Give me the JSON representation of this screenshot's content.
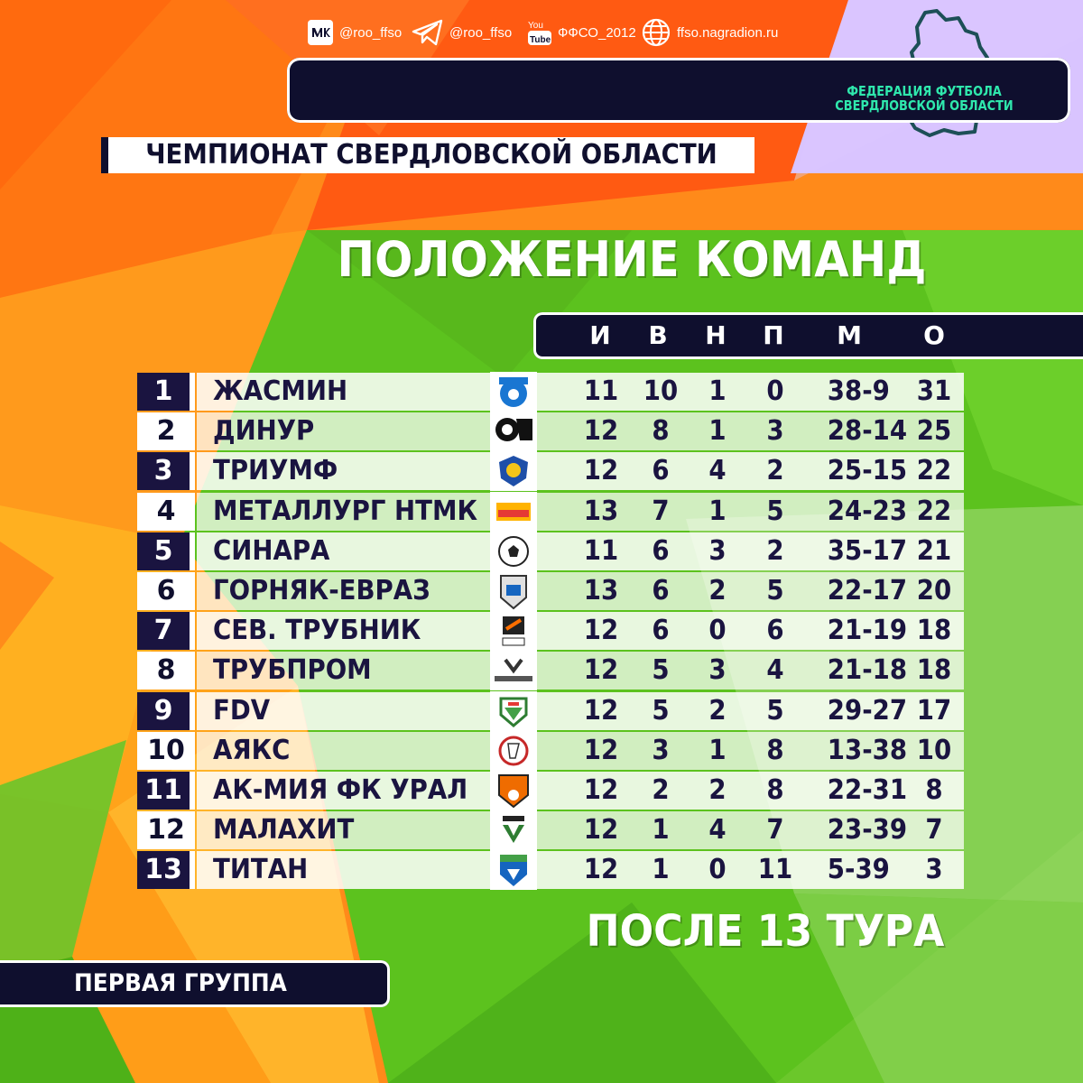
{
  "social": {
    "vk": "@roo_ffso",
    "telegram": "@roo_ffso",
    "youtube": "ФФСО_2012",
    "site": "ffso.nagradion.ru"
  },
  "federation": {
    "line1": "ФЕДЕРАЦИЯ ФУТБОЛА",
    "line2": "СВЕРДЛОВСКОЙ ОБЛАСТИ"
  },
  "championship": "ЧЕМПИОНАТ СВЕРДЛОВСКОЙ ОБЛАСТИ",
  "title": "ПОЛОЖЕНИЕ КОМАНД",
  "columns": [
    "И",
    "В",
    "Н",
    "П",
    "М",
    "О"
  ],
  "table": [
    {
      "pos": "1",
      "team": "ЖАСМИН",
      "logo": "zhasmin-logo",
      "p": "11",
      "w": "10",
      "d": "1",
      "l": "0",
      "goals": "38-9",
      "pts": "31"
    },
    {
      "pos": "2",
      "team": "ДИНУР",
      "logo": "dinur-logo",
      "p": "12",
      "w": "8",
      "d": "1",
      "l": "3",
      "goals": "28-14",
      "pts": "25"
    },
    {
      "pos": "3",
      "team": "ТРИУМФ",
      "logo": "triumf-logo",
      "p": "12",
      "w": "6",
      "d": "4",
      "l": "2",
      "goals": "25-15",
      "pts": "22"
    },
    {
      "pos": "4",
      "team": "МЕТАЛЛУРГ НТМК",
      "logo": "ntmk-logo",
      "p": "13",
      "w": "7",
      "d": "1",
      "l": "5",
      "goals": "24-23",
      "pts": "22"
    },
    {
      "pos": "5",
      "team": "СИНАРА",
      "logo": "sinara-logo",
      "p": "11",
      "w": "6",
      "d": "3",
      "l": "2",
      "goals": "35-17",
      "pts": "21"
    },
    {
      "pos": "6",
      "team": "ГОРНЯК-ЕВРАЗ",
      "logo": "gornyak-logo",
      "p": "13",
      "w": "6",
      "d": "2",
      "l": "5",
      "goals": "22-17",
      "pts": "20"
    },
    {
      "pos": "7",
      "team": "СЕВ. ТРУБНИК",
      "logo": "trubnik-logo",
      "p": "12",
      "w": "6",
      "d": "0",
      "l": "6",
      "goals": "21-19",
      "pts": "18"
    },
    {
      "pos": "8",
      "team": "ТРУБПРОМ",
      "logo": "trubprom-logo",
      "p": "12",
      "w": "5",
      "d": "3",
      "l": "4",
      "goals": "21-18",
      "pts": "18"
    },
    {
      "pos": "9",
      "team": "FDV",
      "logo": "fdv-logo",
      "p": "12",
      "w": "5",
      "d": "2",
      "l": "5",
      "goals": "29-27",
      "pts": "17"
    },
    {
      "pos": "10",
      "team": "АЯКС",
      "logo": "ajax-logo",
      "p": "12",
      "w": "3",
      "d": "1",
      "l": "8",
      "goals": "13-38",
      "pts": "10"
    },
    {
      "pos": "11",
      "team": "АК-МИЯ ФК УРАЛ",
      "logo": "ural-logo",
      "p": "12",
      "w": "2",
      "d": "2",
      "l": "8",
      "goals": "22-31",
      "pts": "8"
    },
    {
      "pos": "12",
      "team": "МАЛАХИТ",
      "logo": "malakhit-logo",
      "p": "12",
      "w": "1",
      "d": "4",
      "l": "7",
      "goals": "23-39",
      "pts": "7"
    },
    {
      "pos": "13",
      "team": "ТИТАН",
      "logo": "titan-logo",
      "p": "12",
      "w": "1",
      "d": "0",
      "l": "11",
      "goals": "5-39",
      "pts": "3"
    }
  ],
  "after_round": "ПОСЛЕ 13 ТУРА",
  "group": "ПЕРВАЯ ГРУППА",
  "colors": {
    "navy": "#0f0f2e",
    "team_text": "#1a1440",
    "orange": "#ff7a12",
    "green": "#5cc21e",
    "lavender": "#d9c4ff",
    "federation_text": "#2fe8ad"
  }
}
